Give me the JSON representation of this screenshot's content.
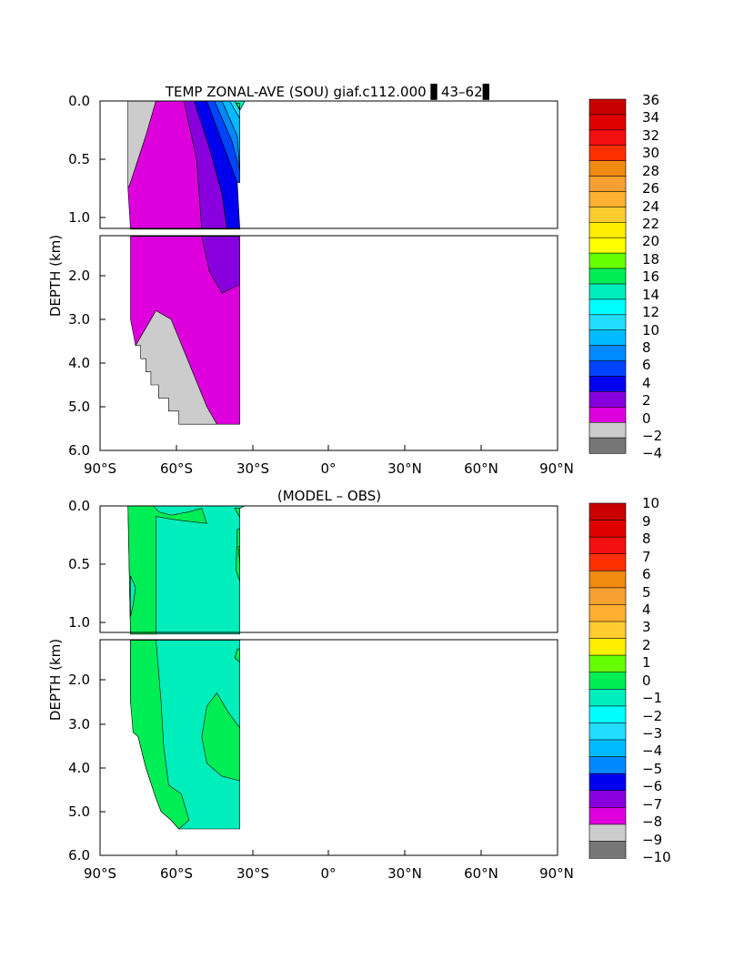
{
  "chart_data": [
    {
      "type": "heatmap",
      "title": "TEMP ZONAL-AVE (SOU) giaf.c112.000 ▋43–62▋",
      "xlabel": "",
      "ylabel": "DEPTH (km)",
      "x_ticks": [
        "90°S",
        "60°S",
        "30°S",
        "0°",
        "30°N",
        "60°N",
        "90°N"
      ],
      "upper_y_ticks": [
        "0.0",
        "0.5",
        "1.0"
      ],
      "lower_y_ticks": [
        "2.0",
        "3.0",
        "4.0",
        "5.0",
        "6.0"
      ],
      "xlim": [
        -90,
        90
      ],
      "ylim": [
        6.0,
        0.0
      ],
      "y_break_km": 1.1,
      "colorbar": {
        "labels": [
          "36",
          "34",
          "32",
          "30",
          "28",
          "26",
          "24",
          "22",
          "20",
          "18",
          "16",
          "14",
          "12",
          "10",
          "8",
          "6",
          "4",
          "2",
          "0",
          "−2",
          "−4"
        ],
        "colors": [
          "#c80000",
          "#e00000",
          "#f21010",
          "#ff3000",
          "#f08a10",
          "#f5a030",
          "#ffb030",
          "#ffcc30",
          "#ffee00",
          "#ffff00",
          "#66ff00",
          "#00ee55",
          "#00eebb",
          "#00ffff",
          "#22ddff",
          "#00bbff",
          "#0088ff",
          "#0044ff",
          "#0000ee",
          "#8800dd",
          "#dd00dd",
          "#cccccc",
          "#777777"
        ]
      },
      "regions_upper": [
        {
          "fill": "#cccccc",
          "points": [
            [
              -79,
              0
            ],
            [
              -68,
              0
            ],
            [
              -72,
              0.3
            ],
            [
              -78,
              0.7
            ],
            [
              -79,
              0.75
            ]
          ]
        },
        {
          "fill": "#dd00dd",
          "points": [
            [
              -68,
              0
            ],
            [
              -57,
              0
            ],
            [
              -52,
              0.5
            ],
            [
              -50,
              1.1
            ],
            [
              -78,
              1.1
            ],
            [
              -79,
              0.75
            ],
            [
              -78,
              0.7
            ],
            [
              -72,
              0.3
            ]
          ]
        },
        {
          "fill": "#8800dd",
          "points": [
            [
              -57,
              0
            ],
            [
              -53,
              0
            ],
            [
              -47,
              0.4
            ],
            [
              -42,
              0.8
            ],
            [
              -40,
              1.1
            ],
            [
              -50,
              1.1
            ],
            [
              -52,
              0.5
            ]
          ]
        },
        {
          "fill": "#0000ee",
          "points": [
            [
              -53,
              0
            ],
            [
              -48,
              0
            ],
            [
              -42,
              0.35
            ],
            [
              -36,
              0.7
            ],
            [
              -35,
              1.1
            ],
            [
              -40,
              1.1
            ],
            [
              -42,
              0.8
            ],
            [
              -47,
              0.4
            ]
          ]
        },
        {
          "fill": "#0044ff",
          "points": [
            [
              -48,
              0
            ],
            [
              -45,
              0
            ],
            [
              -38,
              0.35
            ],
            [
              -35,
              0.6
            ],
            [
              -35,
              0.7
            ],
            [
              -36,
              0.7
            ],
            [
              -42,
              0.35
            ]
          ]
        },
        {
          "fill": "#0088ff",
          "points": [
            [
              -45,
              0
            ],
            [
              -42,
              0
            ],
            [
              -36,
              0.3
            ],
            [
              -35,
              0.6
            ],
            [
              -38,
              0.35
            ]
          ]
        },
        {
          "fill": "#00bbff",
          "points": [
            [
              -42,
              0
            ],
            [
              -39,
              0
            ],
            [
              -35,
              0.15
            ],
            [
              -35,
              0.6
            ],
            [
              -36,
              0.3
            ]
          ]
        },
        {
          "fill": "#22ddff",
          "points": [
            [
              -39,
              0
            ],
            [
              -37,
              0
            ],
            [
              -35,
              0.08
            ],
            [
              -35,
              0.15
            ]
          ]
        },
        {
          "fill": "#00eebb",
          "points": [
            [
              -37,
              0
            ],
            [
              -33,
              0
            ],
            [
              -35,
              0.08
            ]
          ]
        },
        {
          "fill": "#00ee55",
          "points": [
            [
              -36.5,
              0.02
            ],
            [
              -35,
              0.02
            ],
            [
              -35,
              0.07
            ]
          ]
        }
      ],
      "regions_lower": [
        {
          "fill": "#dd00dd",
          "points": [
            [
              -78,
              1.1
            ],
            [
              -35,
              1.1
            ],
            [
              -35,
              5.4
            ],
            [
              -44,
              5.4
            ],
            [
              -48,
              5.0
            ],
            [
              -55,
              4.0
            ],
            [
              -62,
              3.0
            ],
            [
              -68,
              2.8
            ],
            [
              -76,
              3.6
            ],
            [
              -78,
              3.0
            ]
          ]
        },
        {
          "fill": "#8800dd",
          "points": [
            [
              -50,
              1.1
            ],
            [
              -35,
              1.1
            ],
            [
              -35,
              2.2
            ],
            [
              -42,
              2.4
            ],
            [
              -47,
              1.9
            ]
          ]
        },
        {
          "fill": "#cccccc",
          "points": [
            [
              -76,
              3.6
            ],
            [
              -68,
              2.8
            ],
            [
              -62,
              3.0
            ],
            [
              -55,
              4.0
            ],
            [
              -48,
              5.0
            ],
            [
              -44,
              5.4
            ],
            [
              -59,
              5.4
            ],
            [
              -59,
              5.1
            ],
            [
              -63,
              5.1
            ],
            [
              -63,
              4.8
            ],
            [
              -67,
              4.8
            ],
            [
              -67,
              4.5
            ],
            [
              -70,
              4.5
            ],
            [
              -70,
              4.2
            ],
            [
              -72,
              4.2
            ],
            [
              -72,
              3.9
            ],
            [
              -74,
              3.9
            ],
            [
              -74,
              3.6
            ]
          ]
        }
      ]
    },
    {
      "type": "heatmap",
      "title": "(MODEL – OBS)",
      "xlabel": "",
      "ylabel": "DEPTH (km)",
      "x_ticks": [
        "90°S",
        "60°S",
        "30°S",
        "0°",
        "30°N",
        "60°N",
        "90°N"
      ],
      "upper_y_ticks": [
        "0.0",
        "0.5",
        "1.0"
      ],
      "lower_y_ticks": [
        "2.0",
        "3.0",
        "4.0",
        "5.0",
        "6.0"
      ],
      "xlim": [
        -90,
        90
      ],
      "ylim": [
        6.0,
        0.0
      ],
      "y_break_km": 1.1,
      "colorbar": {
        "labels": [
          "10",
          "9",
          "8",
          "7",
          "6",
          "5",
          "4",
          "3",
          "2",
          "1",
          "0",
          "−1",
          "−2",
          "−3",
          "−4",
          "−5",
          "−6",
          "−7",
          "−8",
          "−9",
          "−10"
        ],
        "colors": [
          "#c80000",
          "#e00000",
          "#f21010",
          "#ff3000",
          "#f08a10",
          "#f5a030",
          "#ffb030",
          "#ffcc30",
          "#ffee00",
          "#66ff00",
          "#00ee55",
          "#00eebb",
          "#00ffff",
          "#22ddff",
          "#00bbff",
          "#0088ff",
          "#0000ee",
          "#8800dd",
          "#dd00dd",
          "#cccccc",
          "#777777"
        ]
      },
      "regions_upper": [
        {
          "fill": "#00eebb",
          "points": [
            [
              -79,
              0
            ],
            [
              -33,
              0
            ],
            [
              -35,
              0.02
            ],
            [
              -35,
              1.1
            ],
            [
              -78,
              1.1
            ]
          ]
        },
        {
          "fill": "#00ee55",
          "points": [
            [
              -79,
              0
            ],
            [
              -69,
              0
            ],
            [
              -67,
              0.05
            ],
            [
              -62,
              0.08
            ],
            [
              -55,
              0.05
            ],
            [
              -50,
              0.02
            ],
            [
              -48,
              0.15
            ],
            [
              -60,
              0.12
            ],
            [
              -68,
              0.09
            ],
            [
              -68,
              1.1
            ],
            [
              -78,
              1.1
            ]
          ]
        },
        {
          "fill": "#00eebb",
          "points": [
            [
              -78,
              0.6
            ],
            [
              -76,
              0.7
            ],
            [
              -77,
              0.85
            ],
            [
              -78,
              0.95
            ]
          ]
        },
        {
          "fill": "#00ee55",
          "points": [
            [
              -36,
              0.2
            ],
            [
              -35,
              0.2
            ],
            [
              -35,
              0.65
            ],
            [
              -36.5,
              0.55
            ]
          ]
        },
        {
          "fill": "#66ff00",
          "points": [
            [
              -35.6,
              0.35
            ],
            [
              -35,
              0.35
            ],
            [
              -35,
              0.5
            ]
          ]
        },
        {
          "fill": "#00ee55",
          "points": [
            [
              -37,
              0.02
            ],
            [
              -35,
              0.02
            ],
            [
              -35,
              0.1
            ]
          ]
        }
      ],
      "regions_lower": [
        {
          "fill": "#00eebb",
          "points": [
            [
              -78,
              1.1
            ],
            [
              -35,
              1.1
            ],
            [
              -35,
              5.4
            ],
            [
              -59,
              5.4
            ],
            [
              -62,
              5.2
            ],
            [
              -66,
              5.0
            ],
            [
              -68,
              4.7
            ],
            [
              -72,
              4.0
            ],
            [
              -75,
              3.3
            ],
            [
              -77,
              3.0
            ],
            [
              -78,
              2.5
            ]
          ]
        },
        {
          "fill": "#00ee55",
          "points": [
            [
              -78,
              1.1
            ],
            [
              -68,
              1.1
            ],
            [
              -66,
              2.5
            ],
            [
              -65,
              3.5
            ],
            [
              -63,
              4.4
            ],
            [
              -58,
              4.6
            ],
            [
              -55,
              5.2
            ],
            [
              -59,
              5.4
            ],
            [
              -62,
              5.2
            ],
            [
              -66,
              5.0
            ],
            [
              -68,
              4.7
            ],
            [
              -72,
              4.0
            ],
            [
              -75,
              3.3
            ],
            [
              -77,
              3.2
            ],
            [
              -78,
              2.5
            ]
          ]
        },
        {
          "fill": "#00ee55",
          "points": [
            [
              -48,
              2.6
            ],
            [
              -44,
              2.3
            ],
            [
              -40,
              2.7
            ],
            [
              -35,
              3.1
            ],
            [
              -35,
              4.3
            ],
            [
              -42,
              4.2
            ],
            [
              -48,
              3.9
            ],
            [
              -50,
              3.3
            ]
          ]
        },
        {
          "fill": "#00ee55",
          "points": [
            [
              -36,
              1.3
            ],
            [
              -35,
              1.3
            ],
            [
              -35,
              1.6
            ],
            [
              -37,
              1.5
            ]
          ]
        }
      ]
    }
  ]
}
